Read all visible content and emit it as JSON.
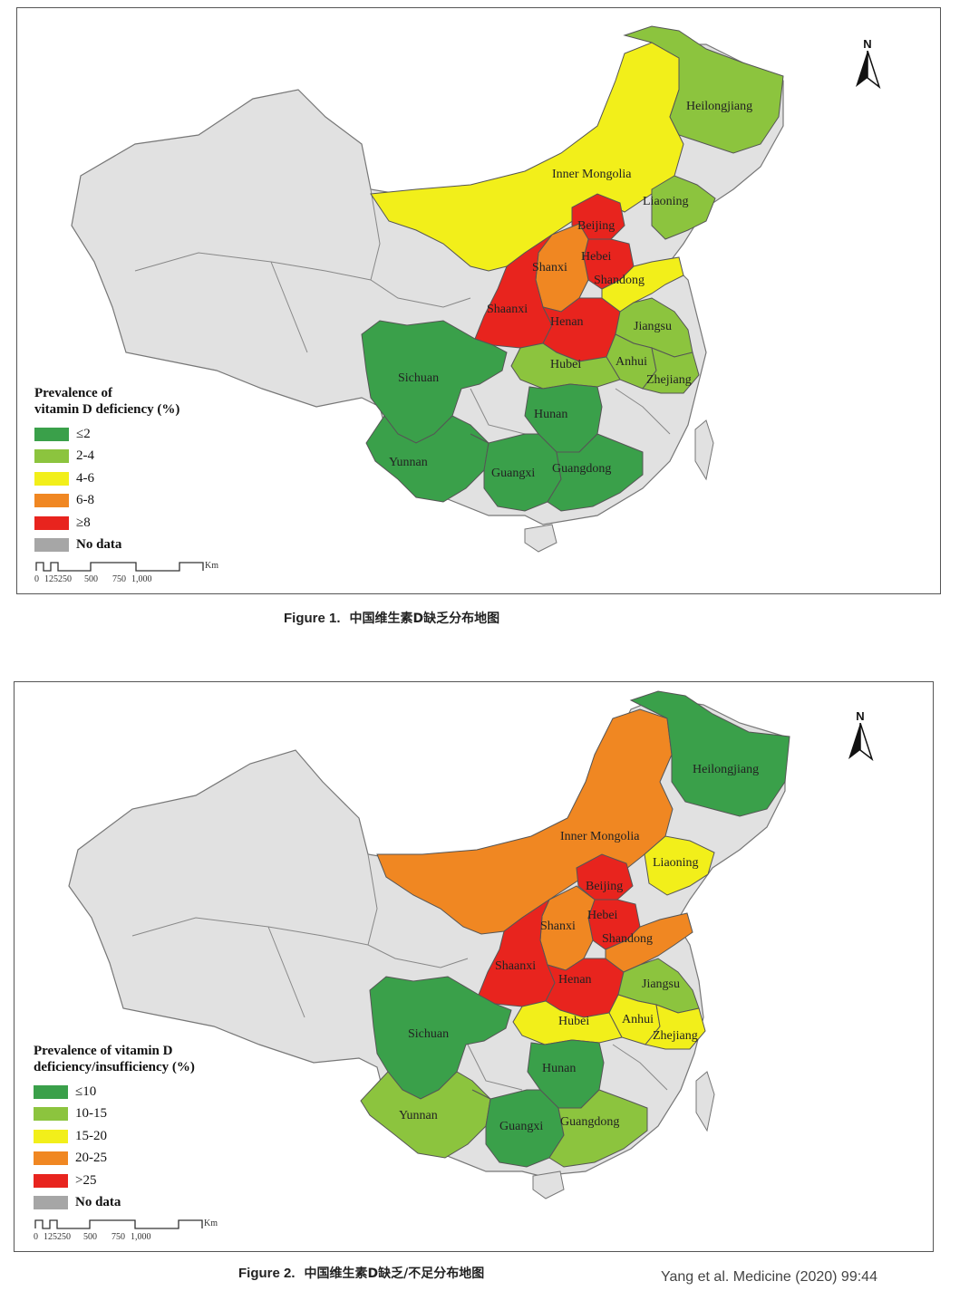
{
  "colors": {
    "c_green": "#3aa04a",
    "c_lightgreen": "#8cc43e",
    "c_yellow": "#f2ef1a",
    "c_orange": "#f08722",
    "c_red": "#e8241e",
    "c_gray": "#a6a6a6",
    "c_nodata": "#e1e1e1"
  },
  "figures": [
    {
      "legend": {
        "title_line1": "Prevalence of",
        "title_line2": "vitamin D deficiency (%)",
        "items": [
          {
            "label": "≤2",
            "color": "#3aa04a"
          },
          {
            "label": "2-4",
            "color": "#8cc43e"
          },
          {
            "label": "4-6",
            "color": "#f2ef1a"
          },
          {
            "label": "6-8",
            "color": "#f08722"
          },
          {
            "label": "≥8",
            "color": "#e8241e"
          },
          {
            "label": "No data",
            "color": "#a6a6a6"
          }
        ]
      },
      "provinces": [
        {
          "name": "Heilongjiang",
          "color": "c_lightgreen"
        },
        {
          "name": "Inner Mongolia",
          "color": "c_yellow"
        },
        {
          "name": "Liaoning",
          "color": "c_lightgreen"
        },
        {
          "name": "Beijing",
          "color": "c_red"
        },
        {
          "name": "Hebei",
          "color": "c_red"
        },
        {
          "name": "Shanxi",
          "color": "c_orange"
        },
        {
          "name": "Shandong",
          "color": "c_yellow"
        },
        {
          "name": "Shaanxi",
          "color": "c_red"
        },
        {
          "name": "Henan",
          "color": "c_red"
        },
        {
          "name": "Jiangsu",
          "color": "c_lightgreen"
        },
        {
          "name": "Anhui",
          "color": "c_lightgreen"
        },
        {
          "name": "Hubei",
          "color": "c_lightgreen"
        },
        {
          "name": "Zhejiang",
          "color": "c_lightgreen"
        },
        {
          "name": "Sichuan",
          "color": "c_green"
        },
        {
          "name": "Hunan",
          "color": "c_green"
        },
        {
          "name": "Yunnan",
          "color": "c_green"
        },
        {
          "name": "Guangxi",
          "color": "c_green"
        },
        {
          "name": "Guangdong",
          "color": "c_green"
        }
      ],
      "scale": {
        "ticks": [
          "0",
          "125250",
          "500",
          "750",
          "1,000"
        ],
        "unit": "Km"
      },
      "north": "N",
      "caption_label": "Figure 1.",
      "caption_text": "中国维生素D缺乏分布地图"
    },
    {
      "legend": {
        "title_line1": "Prevalence of vitamin D",
        "title_line2": "deficiency/insufficiency (%)",
        "items": [
          {
            "label": "≤10",
            "color": "#3aa04a"
          },
          {
            "label": "10-15",
            "color": "#8cc43e"
          },
          {
            "label": "15-20",
            "color": "#f2ef1a"
          },
          {
            "label": "20-25",
            "color": "#f08722"
          },
          {
            "label": ">25",
            "color": "#e8241e"
          },
          {
            "label": "No data",
            "color": "#a6a6a6"
          }
        ]
      },
      "provinces": [
        {
          "name": "Heilongjiang",
          "color": "c_green"
        },
        {
          "name": "Inner Mongolia",
          "color": "c_orange"
        },
        {
          "name": "Liaoning",
          "color": "c_yellow"
        },
        {
          "name": "Beijing",
          "color": "c_red"
        },
        {
          "name": "Hebei",
          "color": "c_red"
        },
        {
          "name": "Shanxi",
          "color": "c_orange"
        },
        {
          "name": "Shandong",
          "color": "c_orange"
        },
        {
          "name": "Shaanxi",
          "color": "c_red"
        },
        {
          "name": "Henan",
          "color": "c_red"
        },
        {
          "name": "Jiangsu",
          "color": "c_lightgreen"
        },
        {
          "name": "Anhui",
          "color": "c_yellow"
        },
        {
          "name": "Hubei",
          "color": "c_yellow"
        },
        {
          "name": "Zhejiang",
          "color": "c_yellow"
        },
        {
          "name": "Sichuan",
          "color": "c_green"
        },
        {
          "name": "Hunan",
          "color": "c_green"
        },
        {
          "name": "Yunnan",
          "color": "c_lightgreen"
        },
        {
          "name": "Guangxi",
          "color": "c_green"
        },
        {
          "name": "Guangdong",
          "color": "c_lightgreen"
        }
      ],
      "scale": {
        "ticks": [
          "0",
          "125250",
          "500",
          "750",
          "1,000"
        ],
        "unit": "Km"
      },
      "north": "N",
      "caption_label": "Figure 2.",
      "caption_text": "中国维生素D缺乏/不足分布地图"
    }
  ],
  "citation": "Yang et al. Medicine (2020) 99:44"
}
